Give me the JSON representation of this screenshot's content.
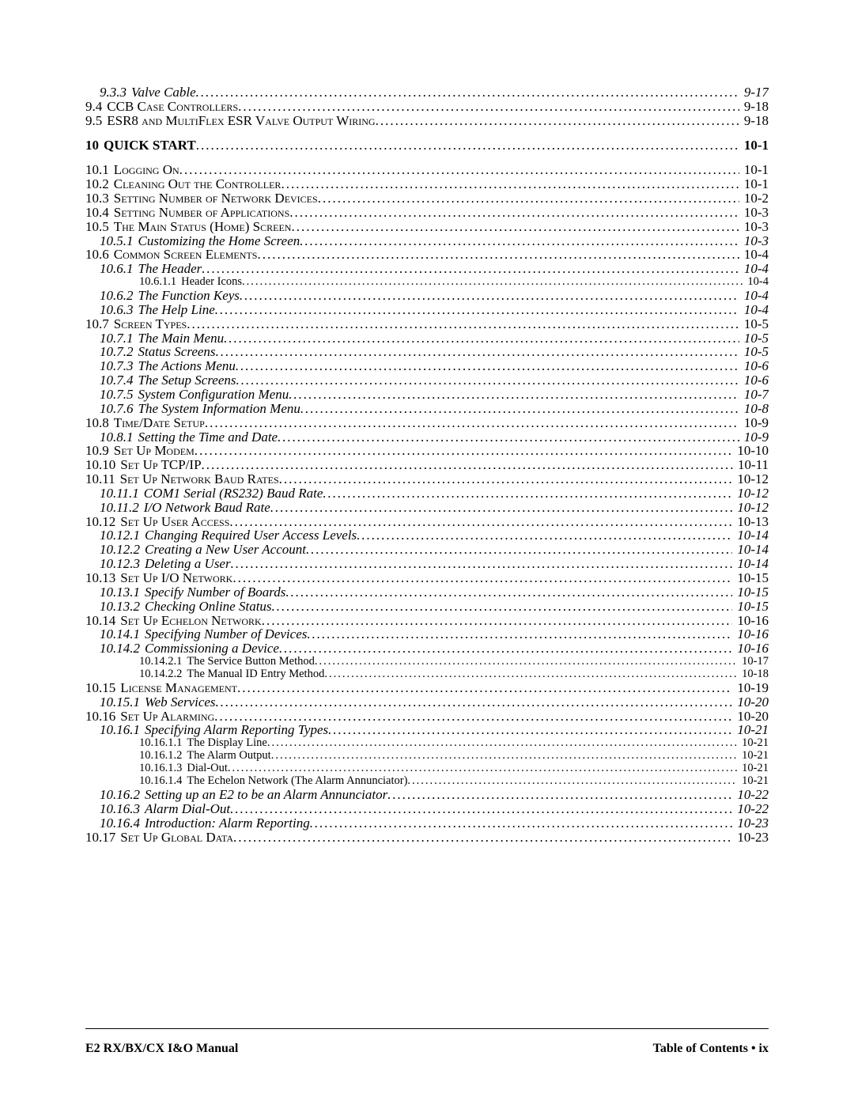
{
  "leaderChar": ".",
  "indentStep": 36,
  "baseIndents": {
    "lvl0": 0,
    "lvl1": 0,
    "lvl2": 18,
    "lvl3": 68
  },
  "entries": [
    {
      "level": 2,
      "num": "9.3.3",
      "title": "Valve Cable",
      "page": "9-17"
    },
    {
      "level": 1,
      "smallcaps": true,
      "num": "9.4",
      "title": "CCB Case Controllers",
      "page": "9-18"
    },
    {
      "level": 1,
      "smallcaps": true,
      "num": "9.5",
      "title": "ESR8 and MultiFlex ESR Valve Output Wiring",
      "page": "9-18"
    },
    {
      "spacer": true
    },
    {
      "level": 0,
      "bold": true,
      "num": "10",
      "title": "QUICK START",
      "page": "10-1"
    },
    {
      "spacer": true
    },
    {
      "level": 1,
      "smallcaps": true,
      "num": "10.1",
      "title": "Logging On",
      "page": "10-1"
    },
    {
      "level": 1,
      "smallcaps": true,
      "num": "10.2",
      "title": "Cleaning Out the Controller",
      "page": "10-1"
    },
    {
      "level": 1,
      "smallcaps": true,
      "num": "10.3",
      "title": "Setting Number of Network Devices",
      "page": "10-2"
    },
    {
      "level": 1,
      "smallcaps": true,
      "num": "10.4",
      "title": "Setting Number of Applications",
      "page": "10-3"
    },
    {
      "level": 1,
      "smallcaps": true,
      "num": "10.5",
      "title": "The Main Status (Home) Screen",
      "page": "10-3"
    },
    {
      "level": 2,
      "num": "10.5.1",
      "title": "Customizing the Home Screen",
      "page": "10-3"
    },
    {
      "level": 1,
      "smallcaps": true,
      "num": "10.6",
      "title": "Common Screen Elements",
      "page": "10-4"
    },
    {
      "level": 2,
      "num": "10.6.1",
      "title": "The Header",
      "page": "10-4"
    },
    {
      "level": 3,
      "num": "10.6.1.1",
      "title": "Header Icons",
      "page": "10-4"
    },
    {
      "level": 2,
      "num": "10.6.2",
      "title": "The Function Keys",
      "page": "10-4"
    },
    {
      "level": 2,
      "num": "10.6.3",
      "title": "The Help Line",
      "page": "10-4"
    },
    {
      "level": 1,
      "smallcaps": true,
      "num": "10.7",
      "title": "Screen Types",
      "page": "10-5"
    },
    {
      "level": 2,
      "num": "10.7.1",
      "title": "The Main Menu",
      "page": "10-5"
    },
    {
      "level": 2,
      "num": "10.7.2",
      "title": "Status Screens",
      "page": "10-5"
    },
    {
      "level": 2,
      "num": "10.7.3",
      "title": "The Actions Menu",
      "page": "10-6"
    },
    {
      "level": 2,
      "num": "10.7.4",
      "title": "The Setup Screens",
      "page": "10-6"
    },
    {
      "level": 2,
      "num": "10.7.5",
      "title": "System Configuration Menu",
      "page": "10-7"
    },
    {
      "level": 2,
      "num": "10.7.6",
      "title": "The System Information Menu",
      "page": "10-8"
    },
    {
      "level": 1,
      "smallcaps": true,
      "num": "10.8",
      "title": "Time/Date Setup",
      "page": "10-9"
    },
    {
      "level": 2,
      "num": "10.8.1",
      "title": "Setting the Time and Date",
      "page": "10-9"
    },
    {
      "level": 1,
      "smallcaps": true,
      "num": "10.9",
      "title": "Set Up Modem",
      "page": "10-10"
    },
    {
      "level": 1,
      "smallcaps": true,
      "num": "10.10",
      "title": "Set Up TCP/IP",
      "page": "10-11"
    },
    {
      "level": 1,
      "smallcaps": true,
      "num": "10.11",
      "title": "Set Up Network Baud Rates",
      "page": "10-12"
    },
    {
      "level": 2,
      "num": "10.11.1",
      "title": "COM1 Serial (RS232) Baud Rate",
      "page": "10-12"
    },
    {
      "level": 2,
      "num": "10.11.2",
      "title": "I/O Network Baud Rate",
      "page": "10-12"
    },
    {
      "level": 1,
      "smallcaps": true,
      "num": "10.12",
      "title": "Set Up User Access",
      "page": "10-13"
    },
    {
      "level": 2,
      "num": "10.12.1",
      "title": "Changing Required User Access Levels",
      "page": "10-14"
    },
    {
      "level": 2,
      "num": "10.12.2",
      "title": "Creating a New User Account",
      "page": "10-14"
    },
    {
      "level": 2,
      "num": "10.12.3",
      "title": "Deleting a User",
      "page": "10-14"
    },
    {
      "level": 1,
      "smallcaps": true,
      "num": "10.13",
      "title": "Set Up I/O Network",
      "page": "10-15"
    },
    {
      "level": 2,
      "num": "10.13.1",
      "title": "Specify Number of Boards",
      "page": "10-15"
    },
    {
      "level": 2,
      "num": "10.13.2",
      "title": "Checking Online Status",
      "page": "10-15"
    },
    {
      "level": 1,
      "smallcaps": true,
      "num": "10.14",
      "title": "Set Up Echelon Network",
      "page": "10-16"
    },
    {
      "level": 2,
      "num": "10.14.1",
      "title": "Specifying Number of Devices",
      "page": "10-16"
    },
    {
      "level": 2,
      "num": "10.14.2",
      "title": "Commissioning a Device",
      "page": "10-16"
    },
    {
      "level": 3,
      "num": "10.14.2.1",
      "title": "The Service Button Method",
      "page": "10-17"
    },
    {
      "level": 3,
      "num": "10.14.2.2",
      "title": "The Manual ID Entry Method",
      "page": "10-18"
    },
    {
      "level": 1,
      "smallcaps": true,
      "num": "10.15",
      "title": "License Management",
      "page": "10-19"
    },
    {
      "level": 2,
      "num": "10.15.1",
      "title": "Web Services",
      "page": "10-20"
    },
    {
      "level": 1,
      "smallcaps": true,
      "num": "10.16",
      "title": "Set Up Alarming",
      "page": "10-20"
    },
    {
      "level": 2,
      "num": "10.16.1",
      "title": "Specifying Alarm Reporting Types",
      "page": "10-21"
    },
    {
      "level": 3,
      "num": "10.16.1.1",
      "title": "The Display Line",
      "page": "10-21"
    },
    {
      "level": 3,
      "num": "10.16.1.2",
      "title": "The Alarm Output",
      "page": "10-21"
    },
    {
      "level": 3,
      "num": "10.16.1.3",
      "title": "Dial-Out",
      "page": "10-21"
    },
    {
      "level": 3,
      "num": "10.16.1.4",
      "title": "The Echelon Network (The Alarm Annunciator)",
      "page": "10-21"
    },
    {
      "level": 2,
      "num": "10.16.2",
      "title": "Setting up an E2 to be an Alarm Annunciator",
      "page": "10-22"
    },
    {
      "level": 2,
      "num": "10.16.3",
      "title": "Alarm Dial-Out",
      "page": "10-22"
    },
    {
      "level": 2,
      "num": "10.16.4",
      "title": "Introduction: Alarm Reporting",
      "page": "10-23"
    },
    {
      "level": 1,
      "smallcaps": true,
      "num": "10.17",
      "title": "Set Up Global Data",
      "page": "10-23"
    }
  ],
  "footer": {
    "left": "E2 RX/BX/CX I&O Manual",
    "right": "Table of Contents • ix"
  }
}
